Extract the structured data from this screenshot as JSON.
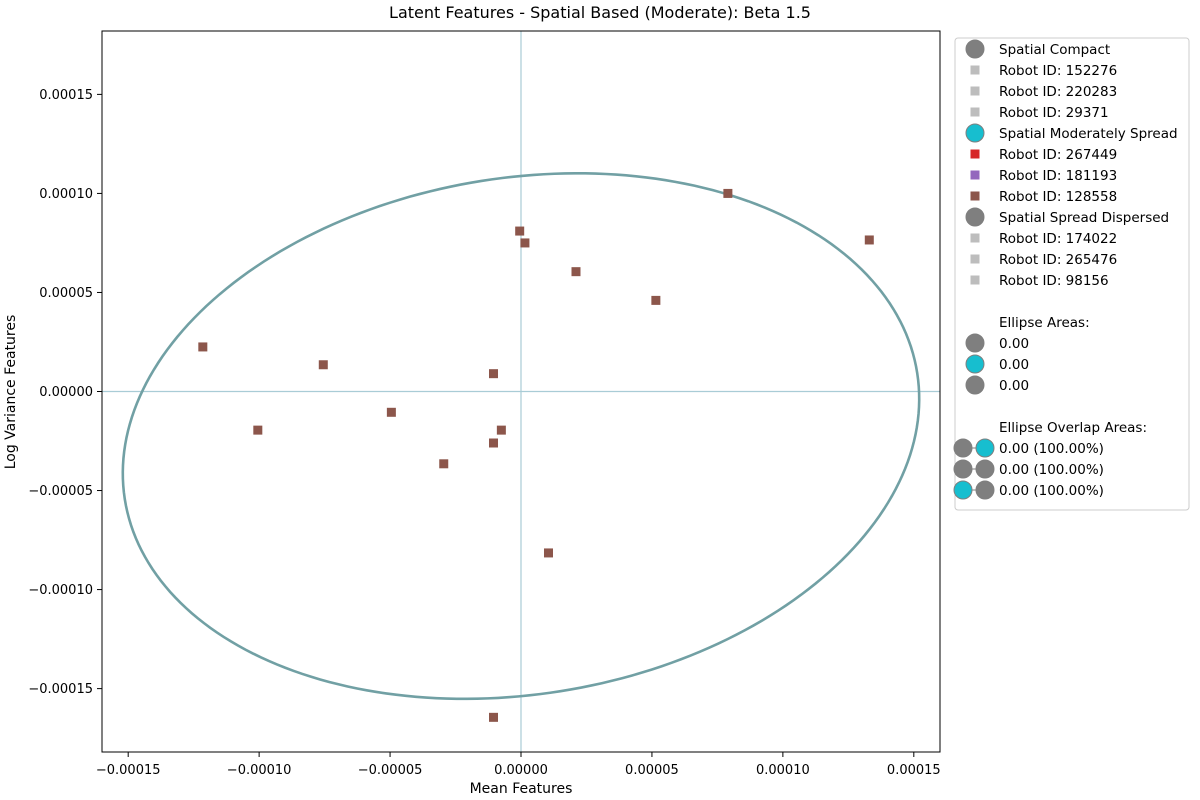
{
  "chart_data": {
    "type": "scatter",
    "title": "Latent Features - Spatial Based (Moderate): Beta 1.5",
    "xlabel": "Mean Features",
    "ylabel": "Log Variance Features",
    "xlim": [
      -0.00016,
      0.00016
    ],
    "ylim": [
      -0.000182,
      0.000182
    ],
    "x_ticks": [
      -0.00015,
      -0.0001,
      -5e-05,
      0.0,
      5e-05,
      0.0001,
      0.00015
    ],
    "x_tick_labels": [
      "−0.00015",
      "−0.00010",
      "−0.00005",
      "0.00000",
      "0.00005",
      "0.00010",
      "0.00015"
    ],
    "y_ticks": [
      0.00015,
      0.0001,
      5e-05,
      0.0,
      -5e-05,
      -0.0001,
      -0.00015
    ],
    "y_tick_labels": [
      "0.00015",
      "0.00010",
      "0.00005",
      "0.00000",
      "−0.00005",
      "−0.00010",
      "−0.00015"
    ],
    "reference_lines": {
      "x": 0.0,
      "y": 0.0,
      "color": "#a9ccd6"
    },
    "ellipse": {
      "center": [
        0.0,
        -2.25e-05
      ],
      "semi_major": 0.000156,
      "semi_minor": 0.000128,
      "angle_deg": 23,
      "color": "#71a0a4"
    },
    "series": [
      {
        "name": "Robot ID: 128558",
        "color": "#8c564b",
        "marker": "square",
        "points": [
          [
            7.9e-05,
            0.0001
          ],
          [
            0.000133,
            7.65e-05
          ],
          [
            -5e-07,
            8.1e-05
          ],
          [
            1.5e-06,
            7.5e-05
          ],
          [
            2.1e-05,
            6.05e-05
          ],
          [
            5.15e-05,
            4.6e-05
          ],
          [
            -0.0001215,
            2.25e-05
          ],
          [
            -7.55e-05,
            1.35e-05
          ],
          [
            -1.05e-05,
            9e-06
          ],
          [
            -4.95e-05,
            -1.05e-05
          ],
          [
            -0.0001005,
            -1.95e-05
          ],
          [
            -7.5e-06,
            -1.95e-05
          ],
          [
            -1.05e-05,
            -2.6e-05
          ],
          [
            -2.95e-05,
            -3.65e-05
          ],
          [
            1.05e-05,
            -8.15e-05
          ],
          [
            -1.05e-05,
            -0.0001645
          ]
        ]
      }
    ],
    "legend": {
      "placement": "outside-right",
      "entries": [
        {
          "label": "Spatial Compact",
          "marker": "circle",
          "color": "#7f7f7f"
        },
        {
          "label": "Robot ID: 152276",
          "marker": "square",
          "color": "#bdbdbd"
        },
        {
          "label": "Robot ID: 220283",
          "marker": "square",
          "color": "#bdbdbd"
        },
        {
          "label": "Robot ID: 29371",
          "marker": "square",
          "color": "#bdbdbd"
        },
        {
          "label": "Spatial Moderately Spread",
          "marker": "circle",
          "color": "#17becf"
        },
        {
          "label": "Robot ID: 267449",
          "marker": "square",
          "color": "#d62728"
        },
        {
          "label": "Robot ID: 181193",
          "marker": "square",
          "color": "#9467bd"
        },
        {
          "label": "Robot ID: 128558",
          "marker": "square",
          "color": "#8c564b"
        },
        {
          "label": "Spatial Spread Dispersed",
          "marker": "circle",
          "color": "#7f7f7f"
        },
        {
          "label": "Robot ID: 174022",
          "marker": "square",
          "color": "#bdbdbd"
        },
        {
          "label": "Robot ID: 265476",
          "marker": "square",
          "color": "#bdbdbd"
        },
        {
          "label": "Robot ID: 98156",
          "marker": "square",
          "color": "#bdbdbd"
        },
        {
          "label": "",
          "marker": "none",
          "color": ""
        },
        {
          "label": "Ellipse Areas:",
          "marker": "none",
          "color": ""
        },
        {
          "label": "0.00",
          "marker": "circle",
          "color": "#7f7f7f"
        },
        {
          "label": "0.00",
          "marker": "circle",
          "color": "#17becf"
        },
        {
          "label": "0.00",
          "marker": "circle",
          "color": "#7f7f7f"
        },
        {
          "label": "",
          "marker": "none",
          "color": ""
        },
        {
          "label": "Ellipse Overlap Areas:",
          "marker": "none",
          "color": ""
        },
        {
          "label": "0.00 (100.00%)",
          "marker": "pair",
          "colors": [
            "#7f7f7f",
            "#17becf"
          ]
        },
        {
          "label": "0.00 (100.00%)",
          "marker": "pair",
          "colors": [
            "#7f7f7f",
            "#7f7f7f"
          ]
        },
        {
          "label": "0.00 (100.00%)",
          "marker": "pair",
          "colors": [
            "#17becf",
            "#7f7f7f"
          ]
        }
      ]
    }
  }
}
